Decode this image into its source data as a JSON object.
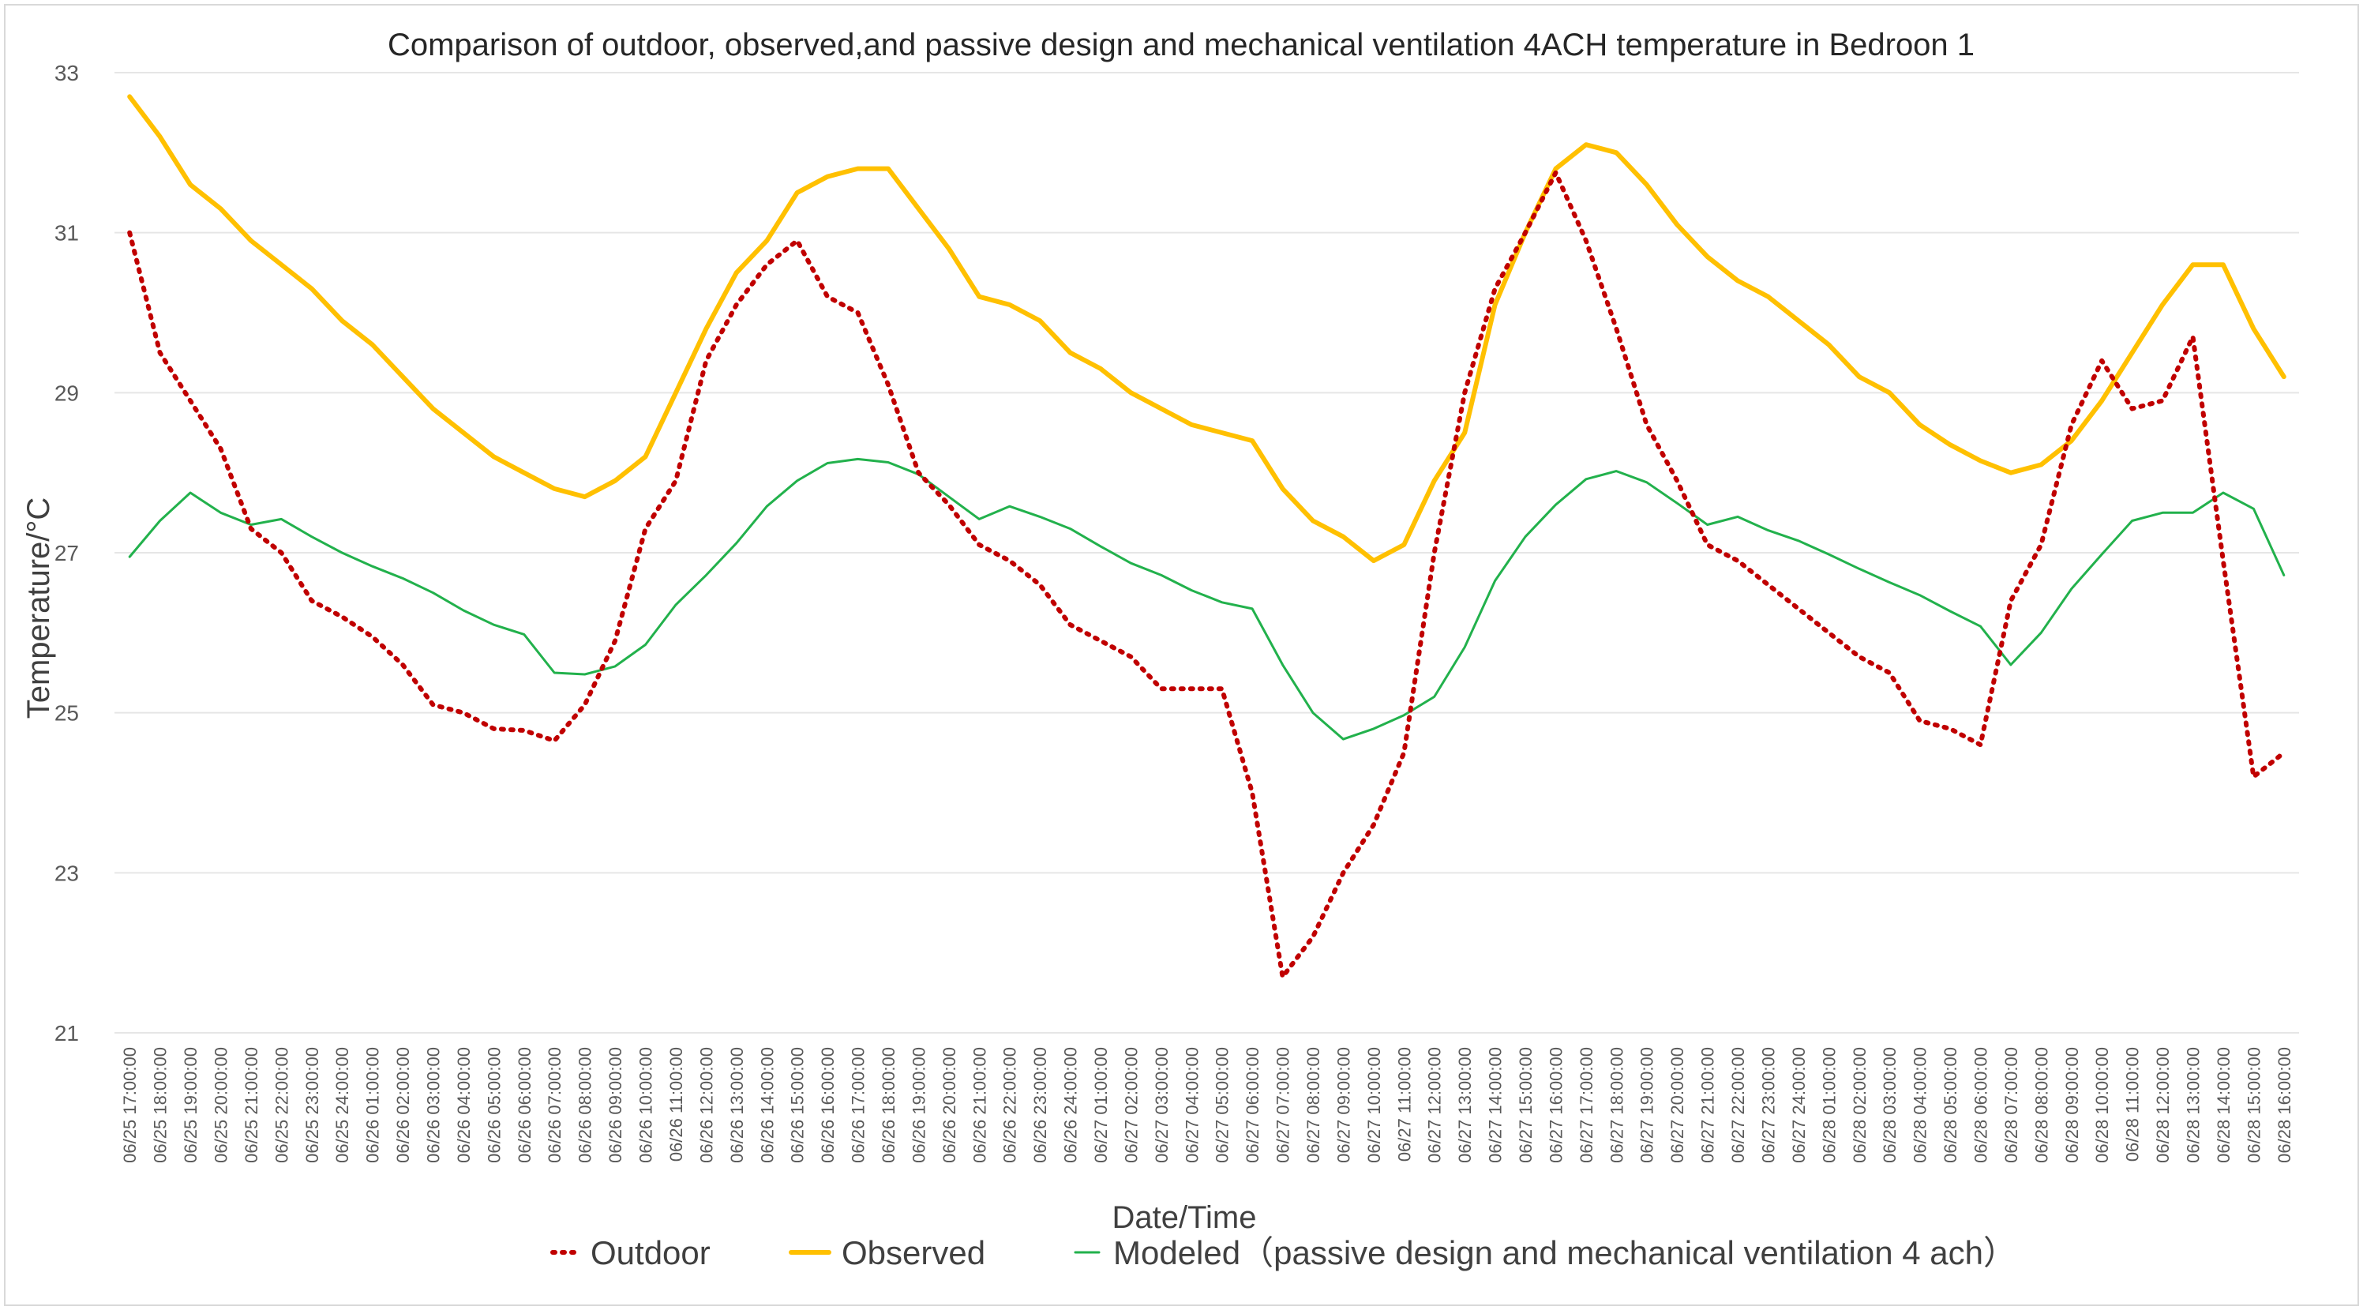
{
  "chart_data": {
    "type": "line",
    "title": "Comparison of outdoor, observed,and passive design and mechanical ventilation 4ACH temperature in Bedroon 1",
    "xlabel": "Date/Time",
    "ylabel": "Temperature/°C",
    "ylim": [
      21,
      33
    ],
    "yticks": [
      21,
      23,
      25,
      27,
      29,
      31,
      33
    ],
    "grid": true,
    "legend_position": "bottom",
    "categories": [
      "06/25 17:00:00",
      "06/25 18:00:00",
      "06/25 19:00:00",
      "06/25 20:00:00",
      "06/25 21:00:00",
      "06/25 22:00:00",
      "06/25 23:00:00",
      "06/25 24:00:00",
      "06/26 01:00:00",
      "06/26 02:00:00",
      "06/26 03:00:00",
      "06/26 04:00:00",
      "06/26 05:00:00",
      "06/26 06:00:00",
      "06/26 07:00:00",
      "06/26 08:00:00",
      "06/26 09:00:00",
      "06/26 10:00:00",
      "06/26 11:00:00",
      "06/26 12:00:00",
      "06/26 13:00:00",
      "06/26 14:00:00",
      "06/26 15:00:00",
      "06/26 16:00:00",
      "06/26 17:00:00",
      "06/26 18:00:00",
      "06/26 19:00:00",
      "06/26 20:00:00",
      "06/26 21:00:00",
      "06/26 22:00:00",
      "06/26 23:00:00",
      "06/26 24:00:00",
      "06/27 01:00:00",
      "06/27 02:00:00",
      "06/27 03:00:00",
      "06/27 04:00:00",
      "06/27 05:00:00",
      "06/27 06:00:00",
      "06/27 07:00:00",
      "06/27 08:00:00",
      "06/27 09:00:00",
      "06/27 10:00:00",
      "06/27 11:00:00",
      "06/27 12:00:00",
      "06/27 13:00:00",
      "06/27 14:00:00",
      "06/27 15:00:00",
      "06/27 16:00:00",
      "06/27 17:00:00",
      "06/27 18:00:00",
      "06/27 19:00:00",
      "06/27 20:00:00",
      "06/27 21:00:00",
      "06/27 22:00:00",
      "06/27 23:00:00",
      "06/27 24:00:00",
      "06/28 01:00:00",
      "06/28 02:00:00",
      "06/28 03:00:00",
      "06/28 04:00:00",
      "06/28 05:00:00",
      "06/28 06:00:00",
      "06/28 07:00:00",
      "06/28 08:00:00",
      "06/28 09:00:00",
      "06/28 10:00:00",
      "06/28 11:00:00",
      "06/28 12:00:00",
      "06/28 13:00:00",
      "06/28 14:00:00",
      "06/28 15:00:00",
      "06/28 16:00:00"
    ],
    "series": [
      {
        "name": "Outdoor",
        "style": "dotted",
        "color": "#c00000",
        "values": [
          31.0,
          29.5,
          28.9,
          28.3,
          27.3,
          27.0,
          26.4,
          26.2,
          25.95,
          25.6,
          25.1,
          25.0,
          24.8,
          24.78,
          24.65,
          25.1,
          25.9,
          27.3,
          27.9,
          29.4,
          30.1,
          30.6,
          30.9,
          30.2,
          30.0,
          29.1,
          28.0,
          27.6,
          27.1,
          26.9,
          26.6,
          26.1,
          25.9,
          25.7,
          25.3,
          25.3,
          25.3,
          24.0,
          21.7,
          22.2,
          23.0,
          23.6,
          24.5,
          27.0,
          29.0,
          30.3,
          31.0,
          31.75,
          30.9,
          29.8,
          28.6,
          27.9,
          27.1,
          26.9,
          26.6,
          26.3,
          26.0,
          25.7,
          25.5,
          24.9,
          24.8,
          24.6,
          26.4,
          27.1,
          28.6,
          29.4,
          28.8,
          28.9,
          29.7,
          26.9,
          24.2,
          24.5
        ]
      },
      {
        "name": "Observed",
        "style": "solid-thick",
        "color": "#ffc000",
        "values": [
          32.7,
          32.2,
          31.6,
          31.3,
          30.9,
          30.6,
          30.3,
          29.9,
          29.6,
          29.2,
          28.8,
          28.5,
          28.2,
          28.0,
          27.8,
          27.7,
          27.9,
          28.2,
          29.0,
          29.8,
          30.5,
          30.9,
          31.5,
          31.7,
          31.8,
          31.8,
          31.3,
          30.8,
          30.2,
          30.1,
          29.9,
          29.5,
          29.3,
          29.0,
          28.8,
          28.6,
          28.5,
          28.4,
          27.8,
          27.4,
          27.2,
          26.9,
          27.1,
          27.9,
          28.5,
          30.1,
          31.0,
          31.8,
          32.1,
          32.0,
          31.6,
          31.1,
          30.7,
          30.4,
          30.2,
          29.9,
          29.6,
          29.2,
          29.0,
          28.6,
          28.35,
          28.15,
          28.0,
          28.1,
          28.4,
          28.9,
          29.5,
          30.1,
          30.6,
          30.6,
          29.8,
          29.2
        ]
      },
      {
        "name": "Modeled（passive design and mechanical ventilation 4 ach）",
        "style": "solid-thin",
        "color": "#22b14c",
        "values": [
          26.95,
          27.4,
          27.75,
          27.5,
          27.35,
          27.42,
          27.2,
          27.0,
          26.83,
          26.68,
          26.5,
          26.28,
          26.1,
          25.98,
          25.5,
          25.48,
          25.58,
          25.85,
          26.35,
          26.72,
          27.12,
          27.58,
          27.9,
          28.12,
          28.17,
          28.13,
          27.98,
          27.7,
          27.42,
          27.58,
          27.45,
          27.3,
          27.08,
          26.87,
          26.72,
          26.53,
          26.38,
          26.3,
          25.6,
          25.0,
          24.67,
          24.8,
          24.97,
          25.2,
          25.82,
          26.65,
          27.2,
          27.6,
          27.92,
          28.02,
          27.88,
          27.62,
          27.35,
          27.45,
          27.28,
          27.15,
          26.98,
          26.8,
          26.63,
          26.47,
          26.27,
          26.08,
          25.6,
          26.0,
          26.55,
          26.98,
          27.4,
          27.5,
          27.5,
          27.75,
          27.55,
          26.72
        ]
      }
    ]
  }
}
